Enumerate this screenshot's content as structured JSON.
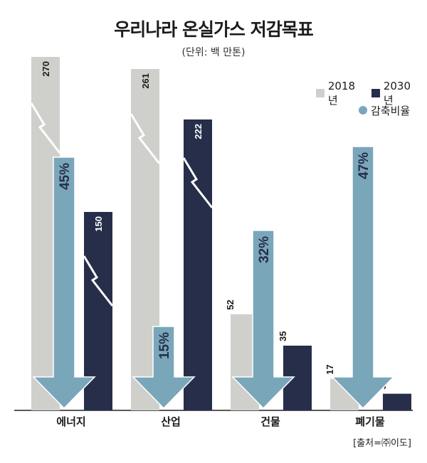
{
  "title": "우리나라 온실가스 저감목표",
  "unit": "(단위: 백 만톤)",
  "source": "[출처=㈜이도]",
  "colors": {
    "y2018": "#cfcfcc",
    "y2030": "#262e4a",
    "reduction": "#7aa6ba"
  },
  "legend": {
    "item_2018": "2018년",
    "item_2030": "2030년",
    "item_rate": "감축비율"
  },
  "chart_data": {
    "type": "bar",
    "categories": [
      "에너지",
      "산업",
      "건물",
      "폐기물"
    ],
    "series": [
      {
        "name": "2018년",
        "values": [
          270,
          261,
          52,
          17
        ],
        "labels": [
          "270",
          "261",
          "52",
          "17"
        ]
      },
      {
        "name": "2030년",
        "values": [
          150,
          222,
          35,
          9
        ],
        "labels": [
          "150",
          "222",
          "35",
          "9"
        ]
      }
    ],
    "reduction_rate": {
      "name": "감축비율",
      "values": [
        45,
        15,
        32,
        47
      ],
      "labels": [
        "45%",
        "15%",
        "32%",
        "47%"
      ]
    },
    "axis_breaks": true
  }
}
